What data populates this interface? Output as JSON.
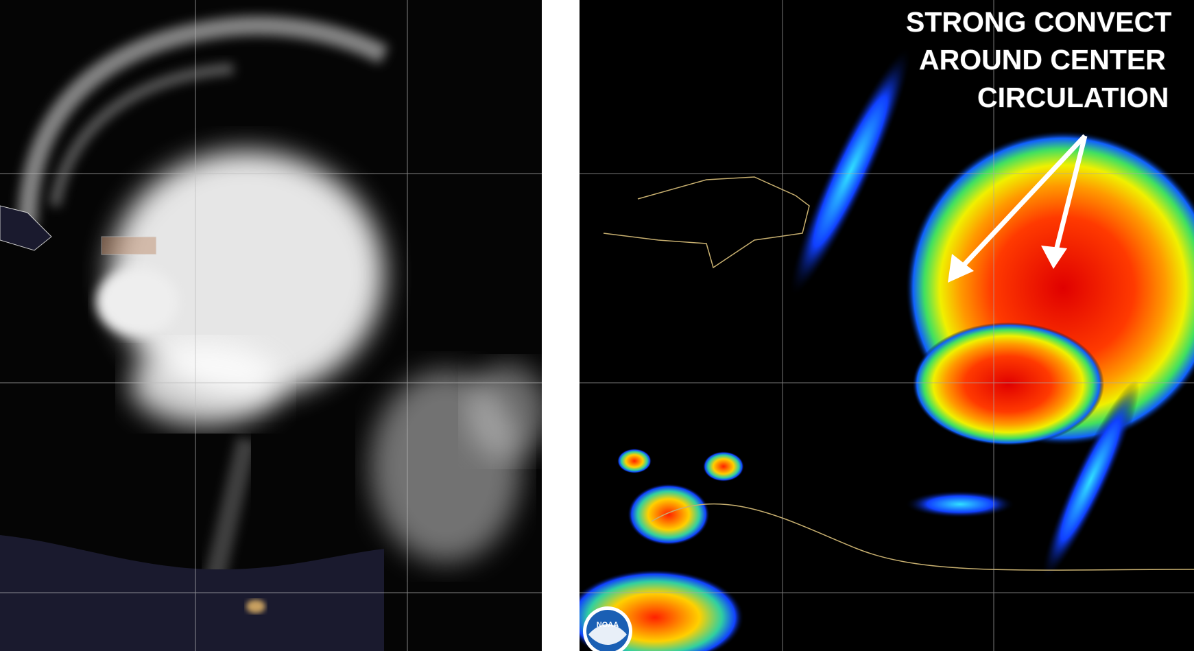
{
  "annotation": {
    "lines": [
      "STRONG CONVECT",
      "AROUND CENTER",
      "CIRCULATION"
    ]
  },
  "logo": "NOAA"
}
